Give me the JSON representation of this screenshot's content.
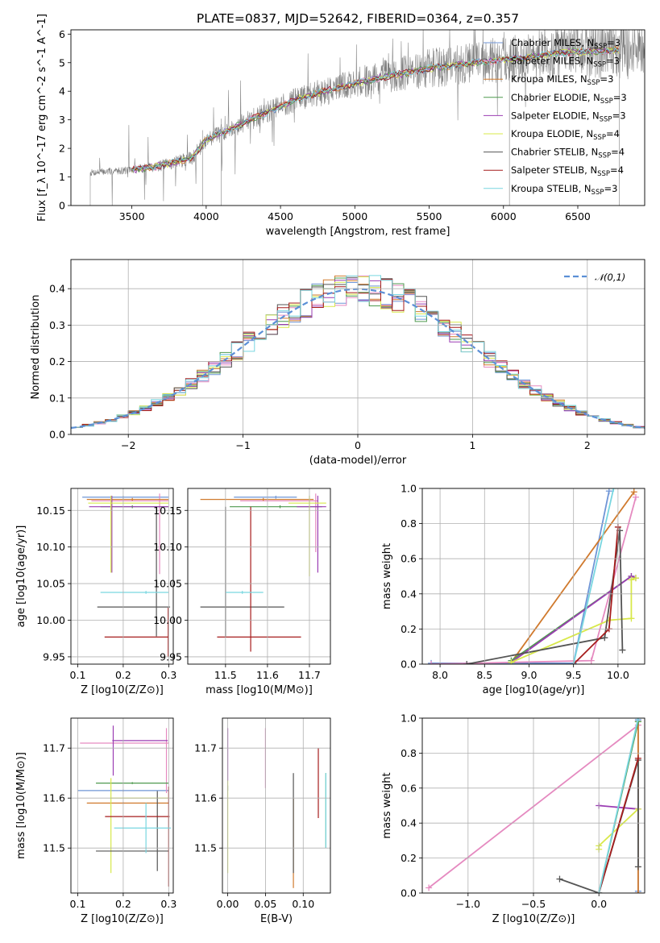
{
  "figure_title": "PLATE=0837, MJD=52642, FIBERID=0364, z=0.357",
  "colors": {
    "Chabrier MILES": "#6f95d6",
    "Salpeter MILES": "#e58ac0",
    "Kroupa MILES": "#d07a2e",
    "Chabrier ELODIE": "#4f9a4f",
    "Salpeter ELODIE": "#9b3db3",
    "Kroupa ELODIE": "#d8e84a",
    "Chabrier STELIB": "#555555",
    "Salpeter STELIB": "#a61c1c",
    "Kroupa STELIB": "#79d6e0",
    "data": "#808080",
    "normal": "#5b8fd6"
  },
  "chart_data": [
    {
      "id": "spectrum",
      "type": "line",
      "title": "PLATE=0837, MJD=52642, FIBERID=0364, z=0.357",
      "xlabel": "wavelength [Angstrom, rest frame]",
      "ylabel": "Flux [f_λ 10^-17 erg cm^-2 s^-1 A^-1]",
      "xlim": [
        3090,
        6950
      ],
      "ylim": [
        0,
        6.15
      ],
      "xticks": [
        3500,
        4000,
        4500,
        5000,
        5500,
        6000,
        6500
      ],
      "yticks": [
        0,
        1,
        2,
        3,
        4,
        5,
        6
      ],
      "data_range": [
        3220,
        6950
      ],
      "model_range": [
        3500,
        6780
      ],
      "continuum_knots": [
        [
          3220,
          1.15
        ],
        [
          3500,
          1.25
        ],
        [
          3700,
          1.4
        ],
        [
          3900,
          1.65
        ],
        [
          4000,
          2.3
        ],
        [
          4300,
          3.0
        ],
        [
          4600,
          3.7
        ],
        [
          4900,
          4.15
        ],
        [
          5200,
          4.5
        ],
        [
          5500,
          4.8
        ],
        [
          5800,
          5.0
        ],
        [
          6100,
          5.15
        ],
        [
          6400,
          5.35
        ],
        [
          6800,
          5.45
        ],
        [
          6950,
          5.5
        ]
      ],
      "legend": [
        {
          "label": "Chabrier MILES, N",
          "sub": "SSP",
          "tail": "=3"
        },
        {
          "label": "Salpeter MILES, N",
          "sub": "SSP",
          "tail": "=3"
        },
        {
          "label": "Kroupa MILES, N",
          "sub": "SSP",
          "tail": "=3"
        },
        {
          "label": "Chabrier ELODIE, N",
          "sub": "SSP",
          "tail": "=3"
        },
        {
          "label": "Salpeter ELODIE, N",
          "sub": "SSP",
          "tail": "=3"
        },
        {
          "label": "Kroupa ELODIE, N",
          "sub": "SSP",
          "tail": "=4"
        },
        {
          "label": "Chabrier STELIB, N",
          "sub": "SSP",
          "tail": "=4"
        },
        {
          "label": "Salpeter STELIB, N",
          "sub": "SSP",
          "tail": "=4"
        },
        {
          "label": "Kroupa STELIB, N",
          "sub": "SSP",
          "tail": "=3"
        }
      ],
      "legend_placement": "top-right",
      "grid": false
    },
    {
      "id": "residuals",
      "type": "histogram",
      "xlabel": "(data-model)/error",
      "ylabel": "Normed distribution",
      "xlim": [
        -2.5,
        2.5
      ],
      "ylim": [
        0,
        0.48
      ],
      "xticks": [
        -2,
        -1,
        0,
        1,
        2
      ],
      "yticks": [
        0.0,
        0.1,
        0.2,
        0.3,
        0.4
      ],
      "bin_width": 0.1,
      "curve_label": "𝒩(0,1)",
      "legend_placement": "top-right",
      "grid": true
    },
    {
      "id": "age_vs_Z",
      "type": "errorbar",
      "xlabel": "Z [log10(Z/Z⊙)]",
      "ylabel": "age [log10(age/yr)]",
      "xlim": [
        0.085,
        0.31
      ],
      "ylim": [
        9.94,
        10.18
      ],
      "xticks": [
        0.1,
        0.2,
        0.3
      ],
      "yticks": [
        9.95,
        10.0,
        10.05,
        10.1,
        10.15
      ],
      "grid": true,
      "points": [
        {
          "model": "Chabrier MILES",
          "x": 0.2,
          "xerr": [
            0.09,
            0.1
          ],
          "y": 10.168,
          "yerr": [
            0.002,
            0.002
          ]
        },
        {
          "model": "Salpeter MILES",
          "x": 0.28,
          "xerr": [
            0.15,
            0.02
          ],
          "y": 10.163,
          "yerr": [
            0.1,
            0.01
          ]
        },
        {
          "model": "Kroupa MILES",
          "x": 0.22,
          "xerr": [
            0.1,
            0.08
          ],
          "y": 10.165,
          "yerr": [
            0.002,
            0.002
          ]
        },
        {
          "model": "Chabrier ELODIE",
          "x": 0.22,
          "xerr": [
            0.07,
            0.08
          ],
          "y": 10.155,
          "yerr": [
            0.002,
            0.002
          ]
        },
        {
          "model": "Salpeter ELODIE",
          "x": 0.175,
          "xerr": [
            0.05,
            0.125
          ],
          "y": 10.155,
          "yerr": [
            0.09,
            0.015
          ]
        },
        {
          "model": "Kroupa ELODIE",
          "x": 0.173,
          "xerr": [
            0.05,
            0.127
          ],
          "y": 10.16,
          "yerr": [
            0.095,
            0.01
          ]
        },
        {
          "model": "Chabrier STELIB",
          "x": 0.273,
          "xerr": [
            0.13,
            0.03
          ],
          "y": 10.018,
          "yerr": [
            0.04,
            0.135
          ]
        },
        {
          "model": "Salpeter STELIB",
          "x": 0.299,
          "xerr": [
            0.14,
            0.001
          ],
          "y": 9.977,
          "yerr": [
            0.027,
            0.04
          ]
        },
        {
          "model": "Kroupa STELIB",
          "x": 0.25,
          "xerr": [
            0.1,
            0.05
          ],
          "y": 10.038,
          "yerr": [
            0.002,
            0.002
          ]
        }
      ]
    },
    {
      "id": "age_vs_mass",
      "type": "errorbar",
      "xlabel": "mass [log10(M/M⊙)]",
      "ylabel": "",
      "xlim": [
        11.41,
        11.75
      ],
      "ylim": [
        9.94,
        10.18
      ],
      "xticks": [
        11.5,
        11.6,
        11.7
      ],
      "yticks": [
        9.95,
        10.0,
        10.05,
        10.1,
        10.15
      ],
      "grid": true,
      "points": [
        {
          "model": "Chabrier MILES",
          "x": 11.62,
          "xerr": [
            0.1,
            0.05
          ],
          "y": 10.168,
          "yerr": [
            0.002,
            0.002
          ]
        },
        {
          "model": "Salpeter MILES",
          "x": 11.715,
          "xerr": [
            0.18,
            0.005
          ],
          "y": 10.163,
          "yerr": [
            0.07,
            0.01
          ]
        },
        {
          "model": "Kroupa MILES",
          "x": 11.59,
          "xerr": [
            0.15,
            0.12
          ],
          "y": 10.165,
          "yerr": [
            0.002,
            0.002
          ]
        },
        {
          "model": "Chabrier ELODIE",
          "x": 11.63,
          "xerr": [
            0.12,
            0.1
          ],
          "y": 10.155,
          "yerr": [
            0.002,
            0.002
          ]
        },
        {
          "model": "Salpeter ELODIE",
          "x": 11.72,
          "xerr": [
            0.05,
            0.02
          ],
          "y": 10.155,
          "yerr": [
            0.09,
            0.015
          ]
        },
        {
          "model": "Kroupa ELODIE",
          "x": 11.7,
          "xerr": [
            0.05,
            0.04
          ],
          "y": 10.16,
          "yerr": [
            0.1,
            0.01
          ]
        },
        {
          "model": "Chabrier STELIB",
          "x": 11.5,
          "xerr": [
            0.06,
            0.14
          ],
          "y": 10.018,
          "yerr": [
            0.04,
            0.137
          ]
        },
        {
          "model": "Salpeter STELIB",
          "x": 11.56,
          "xerr": [
            0.08,
            0.12
          ],
          "y": 9.977,
          "yerr": [
            0.02,
            0.178
          ]
        },
        {
          "model": "Kroupa STELIB",
          "x": 11.54,
          "xerr": [
            0.04,
            0.05
          ],
          "y": 10.038,
          "yerr": [
            0.002,
            0.002
          ]
        }
      ]
    },
    {
      "id": "mass_weight_vs_age",
      "type": "line",
      "xlabel": "age [log10(age/yr)]",
      "ylabel": "mass weight",
      "xlim": [
        7.8,
        10.3
      ],
      "ylim": [
        0,
        1
      ],
      "xticks": [
        8.0,
        8.5,
        9.0,
        9.5,
        10.0
      ],
      "yticks": [
        0.0,
        0.2,
        0.4,
        0.6,
        0.8,
        1.0
      ],
      "grid": true,
      "series": [
        {
          "model": "Chabrier MILES",
          "points": [
            [
              7.9,
              0.005
            ],
            [
              9.5,
              0.005
            ],
            [
              9.9,
              0.985
            ]
          ]
        },
        {
          "model": "Salpeter MILES",
          "points": [
            [
              7.9,
              0.0
            ],
            [
              9.7,
              0.02
            ],
            [
              10.2,
              0.95
            ]
          ]
        },
        {
          "model": "Kroupa MILES",
          "points": [
            [
              8.8,
              0.01
            ],
            [
              10.18,
              0.98
            ],
            [
              8.8,
              0.01
            ]
          ]
        },
        {
          "model": "Chabrier ELODIE",
          "points": [
            [
              8.8,
              0.02
            ],
            [
              10.15,
              0.5
            ]
          ]
        },
        {
          "model": "Salpeter ELODIE",
          "points": [
            [
              8.8,
              0.01
            ],
            [
              10.15,
              0.5
            ],
            [
              10.2,
              0.49
            ]
          ]
        },
        {
          "model": "Kroupa ELODIE",
          "points": [
            [
              8.8,
              0.01
            ],
            [
              9.9,
              0.25
            ],
            [
              10.15,
              0.26
            ],
            [
              10.15,
              0.48
            ],
            [
              10.2,
              0.49
            ]
          ]
        },
        {
          "model": "Chabrier STELIB",
          "points": [
            [
              8.3,
              0.0
            ],
            [
              9.85,
              0.15
            ],
            [
              10.02,
              0.76
            ],
            [
              10.05,
              0.08
            ]
          ]
        },
        {
          "model": "Salpeter STELIB",
          "points": [
            [
              9.5,
              0.0
            ],
            [
              9.9,
              0.2
            ],
            [
              10.0,
              0.78
            ]
          ]
        },
        {
          "model": "Kroupa STELIB",
          "points": [
            [
              9.5,
              0.0
            ],
            [
              9.95,
              1.0
            ]
          ]
        }
      ]
    },
    {
      "id": "mass_vs_Z",
      "type": "errorbar",
      "xlabel": "Z [log10(Z/Z⊙)]",
      "ylabel": "mass [log10(M/M⊙)]",
      "xlim": [
        0.085,
        0.31
      ],
      "ylim": [
        11.41,
        11.76
      ],
      "xticks": [
        0.1,
        0.2,
        0.3
      ],
      "yticks": [
        11.5,
        11.6,
        11.7
      ],
      "grid": true,
      "points": [
        {
          "model": "Chabrier MILES",
          "x": 0.2,
          "xerr": [
            0.1,
            0.1
          ],
          "y": 11.615,
          "yerr": [
            0.002,
            0.002
          ]
        },
        {
          "model": "Salpeter MILES",
          "x": 0.295,
          "xerr": [
            0.19,
            0.005
          ],
          "y": 11.71,
          "yerr": [
            0.1,
            0.03
          ]
        },
        {
          "model": "Kroupa MILES",
          "x": 0.2,
          "xerr": [
            0.08,
            0.1
          ],
          "y": 11.59,
          "yerr": [
            0.002,
            0.002
          ]
        },
        {
          "model": "Chabrier ELODIE",
          "x": 0.22,
          "xerr": [
            0.08,
            0.08
          ],
          "y": 11.63,
          "yerr": [
            0.002,
            0.002
          ]
        },
        {
          "model": "Salpeter ELODIE",
          "x": 0.178,
          "xerr": [
            0.002,
            0.12
          ],
          "y": 11.715,
          "yerr": [
            0.07,
            0.03
          ]
        },
        {
          "model": "Kroupa ELODIE",
          "x": 0.173,
          "xerr": [
            0.002,
            0.127
          ],
          "y": 11.6,
          "yerr": [
            0.15,
            0.04
          ]
        },
        {
          "model": "Chabrier STELIB",
          "x": 0.275,
          "xerr": [
            0.135,
            0.025
          ],
          "y": 11.494,
          "yerr": [
            0.04,
            0.12
          ]
        },
        {
          "model": "Salpeter STELIB",
          "x": 0.3,
          "xerr": [
            0.14,
            0.002
          ],
          "y": 11.563,
          "yerr": [
            0.14,
            0.06
          ]
        },
        {
          "model": "Kroupa STELIB",
          "x": 0.25,
          "xerr": [
            0.07,
            0.055
          ],
          "y": 11.54,
          "yerr": [
            0.05,
            0.05
          ]
        }
      ]
    },
    {
      "id": "mass_vs_ebv",
      "type": "errorbar",
      "xlabel": "E(B-V)",
      "ylabel": "",
      "xlim": [
        -0.007,
        0.136
      ],
      "ylim": [
        11.41,
        11.76
      ],
      "xticks": [
        0.0,
        0.05,
        0.1
      ],
      "yticks": [
        11.5,
        11.6,
        11.7
      ],
      "grid": true,
      "points": [
        {
          "model": "Chabrier MILES",
          "x": 0.0,
          "xerr": [
            0.0,
            0.0
          ],
          "y": 11.62,
          "yerr": [
            0.005,
            0.005
          ]
        },
        {
          "model": "Salpeter MILES",
          "x": 0.05,
          "xerr": [
            0.0,
            0.0
          ],
          "y": 11.71,
          "yerr": [
            0.09,
            0.03
          ]
        },
        {
          "model": "Kroupa MILES",
          "x": 0.087,
          "xerr": [
            0.0,
            0.0
          ],
          "y": 11.59,
          "yerr": [
            0.17,
            0.01
          ]
        },
        {
          "model": "Chabrier ELODIE",
          "x": 0.13,
          "xerr": [
            0.0,
            0.0
          ],
          "y": 11.6,
          "yerr": [
            0.1,
            0.05
          ]
        },
        {
          "model": "Salpeter ELODIE",
          "x": 0.0,
          "xerr": [
            0.0,
            0.0
          ],
          "y": 11.715,
          "yerr": [
            0.08,
            0.025
          ]
        },
        {
          "model": "Kroupa ELODIE",
          "x": 0.0,
          "xerr": [
            0.0,
            0.0
          ],
          "y": 11.6,
          "yerr": [
            0.15,
            0.035
          ]
        },
        {
          "model": "Chabrier STELIB",
          "x": 0.087,
          "xerr": [
            0.0,
            0.0
          ],
          "y": 11.55,
          "yerr": [
            0.1,
            0.1
          ]
        },
        {
          "model": "Salpeter STELIB",
          "x": 0.12,
          "xerr": [
            0.0,
            0.0
          ],
          "y": 11.56,
          "yerr": [
            0.0,
            0.14
          ]
        },
        {
          "model": "Kroupa STELIB",
          "x": 0.13,
          "xerr": [
            0.0,
            0.0
          ],
          "y": 11.5,
          "yerr": [
            0.0,
            0.15
          ]
        }
      ]
    },
    {
      "id": "mass_weight_vs_Z",
      "type": "line",
      "xlabel": "Z [log10(Z/Z⊙)]",
      "ylabel": "mass weight",
      "xlim": [
        -1.35,
        0.35
      ],
      "ylim": [
        0,
        1
      ],
      "xticks": [
        -1.0,
        -0.5,
        0.0
      ],
      "yticks": [
        0.0,
        0.2,
        0.4,
        0.6,
        0.8,
        1.0
      ],
      "grid": true,
      "series": [
        {
          "model": "Chabrier MILES",
          "points": [
            [
              0.3,
              0.01
            ],
            [
              0.3,
              0.99
            ]
          ]
        },
        {
          "model": "Salpeter MILES",
          "points": [
            [
              -1.3,
              0.03
            ],
            [
              0.3,
              0.96
            ]
          ]
        },
        {
          "model": "Kroupa MILES",
          "points": [
            [
              0.3,
              0.0
            ],
            [
              0.3,
              0.98
            ]
          ]
        },
        {
          "model": "Chabrier ELODIE",
          "points": [
            [
              0.0,
              0.0
            ],
            [
              0.3,
              0.98
            ]
          ]
        },
        {
          "model": "Salpeter ELODIE",
          "points": [
            [
              0.0,
              0.5
            ],
            [
              0.3,
              0.48
            ]
          ]
        },
        {
          "model": "Kroupa ELODIE",
          "points": [
            [
              0.0,
              0.25
            ],
            [
              0.0,
              0.27
            ],
            [
              0.3,
              0.48
            ]
          ]
        },
        {
          "model": "Chabrier STELIB",
          "points": [
            [
              -0.3,
              0.08
            ],
            [
              0.0,
              0.0
            ],
            [
              0.3,
              0.76
            ],
            [
              0.3,
              0.15
            ]
          ]
        },
        {
          "model": "Salpeter STELIB",
          "points": [
            [
              0.0,
              0.0
            ],
            [
              0.3,
              0.77
            ]
          ]
        },
        {
          "model": "Kroupa STELIB",
          "points": [
            [
              0.0,
              0.0
            ],
            [
              0.3,
              1.0
            ]
          ]
        }
      ]
    }
  ]
}
